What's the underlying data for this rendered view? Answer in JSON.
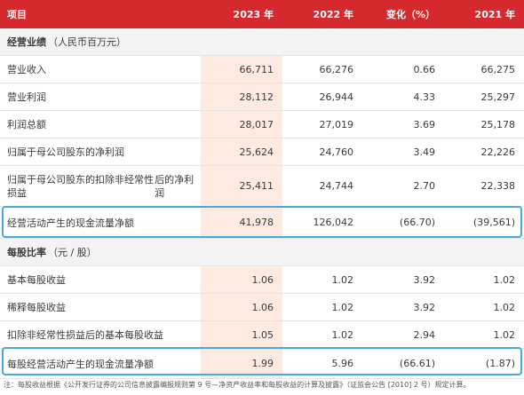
{
  "header": {
    "item": "项目",
    "y2023": "2023 年",
    "y2022": "2022 年",
    "change": "变化（%）",
    "y2021": "2021 年"
  },
  "section1": {
    "title": "经营业绩",
    "unit": "（人民币百万元）"
  },
  "rows1": [
    {
      "label": "营业收入",
      "y2023": "66,711",
      "y2022": "66,276",
      "change": "0.66",
      "y2021": "66,275"
    },
    {
      "label": "营业利润",
      "y2023": "28,112",
      "y2022": "26,944",
      "change": "4.33",
      "y2021": "25,297"
    },
    {
      "label": "利润总额",
      "y2023": "28,017",
      "y2022": "27,019",
      "change": "3.69",
      "y2021": "25,178"
    },
    {
      "label": "归属于母公司股东的净利润",
      "y2023": "25,624",
      "y2022": "24,760",
      "change": "3.49",
      "y2021": "22,226"
    },
    {
      "label_line1": "归属于母公司股东的扣除非经常性损益",
      "label_line2": "后的净利润",
      "y2023": "25,411",
      "y2022": "24,744",
      "change": "2.70",
      "y2021": "22,338"
    },
    {
      "label": "经营活动产生的现金流量净额",
      "y2023": "41,978",
      "y2022": "126,042",
      "change": "(66.70)",
      "y2021": "(39,561)"
    }
  ],
  "section2": {
    "title": "每股比率",
    "unit": "（元 / 股）"
  },
  "rows2": [
    {
      "label": "基本每股收益",
      "y2023": "1.06",
      "y2022": "1.02",
      "change": "3.92",
      "y2021": "1.02"
    },
    {
      "label": "稀释每股收益",
      "y2023": "1.06",
      "y2022": "1.02",
      "change": "3.92",
      "y2021": "1.02"
    },
    {
      "label": "扣除非经常性损益后的基本每股收益",
      "y2023": "1.05",
      "y2022": "1.02",
      "change": "2.94",
      "y2021": "1.02"
    },
    {
      "label": "每股经营活动产生的现金流量净额",
      "y2023": "1.99",
      "y2022": "5.96",
      "change": "(66.61)",
      "y2021": "(1.87)"
    }
  ],
  "footnote": "注：每股收益根据《公开发行证券的公司信息披露编报规则第 9 号—净资产收益率和每股收益的计算及披露》（证监会公告 [2010] 2 号）规定计算。",
  "colors": {
    "header_bg": "#d6292d",
    "highlight_col": "#fdebe2",
    "box_border": "#4aa9dc"
  }
}
